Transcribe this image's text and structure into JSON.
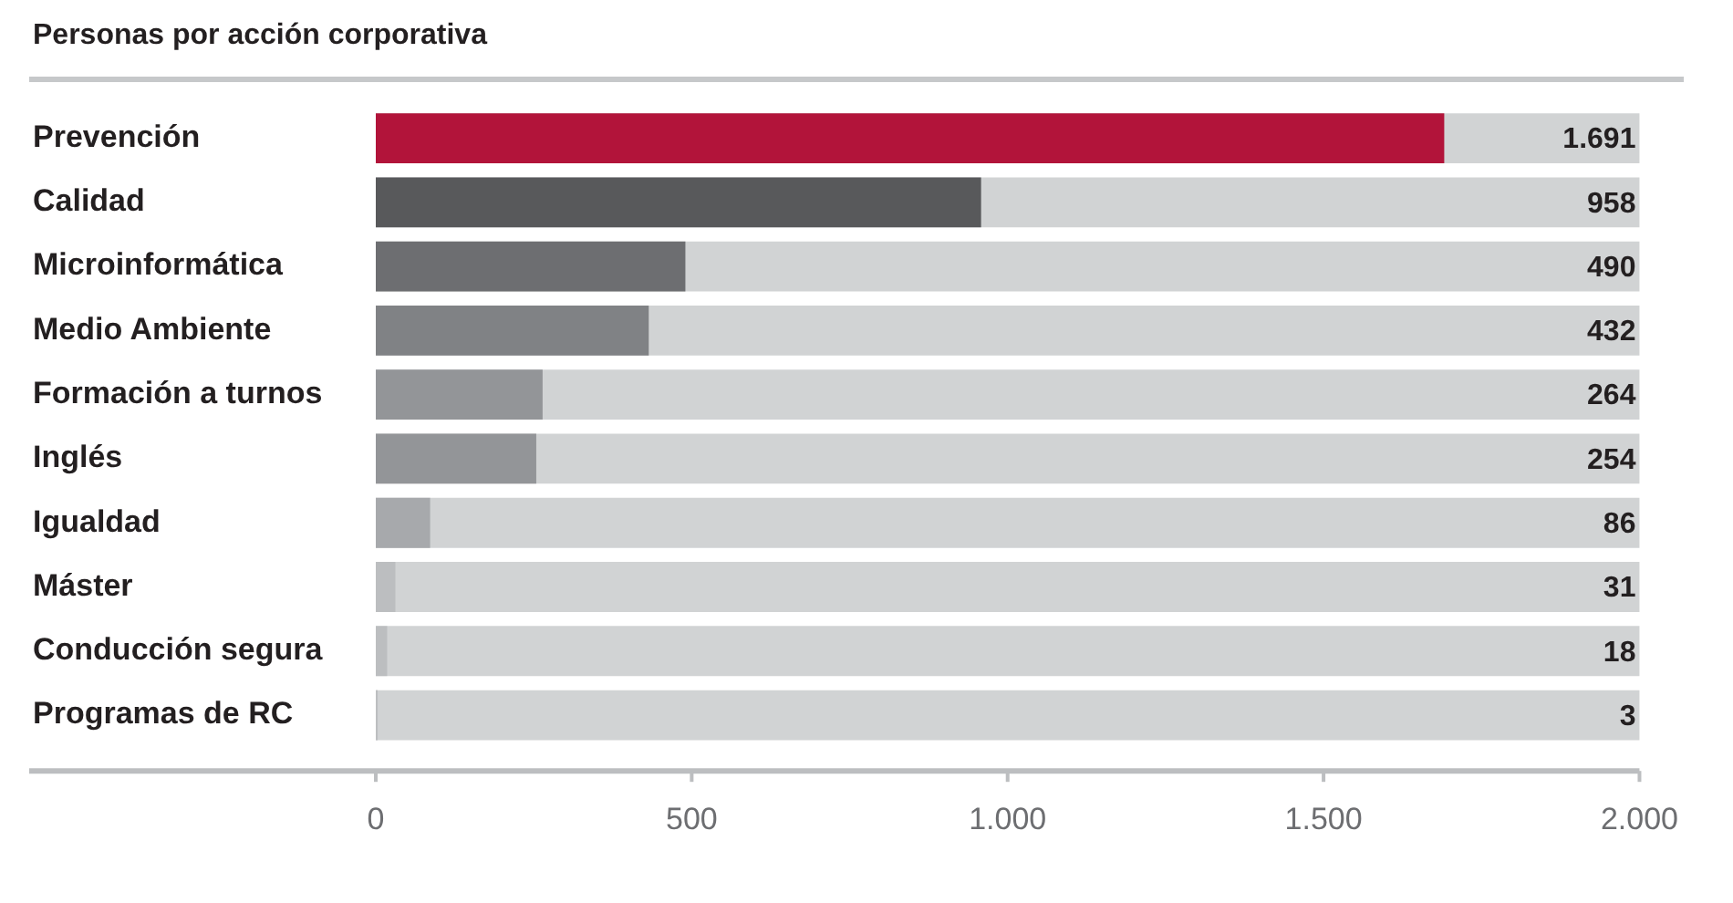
{
  "chart_data": {
    "type": "bar",
    "orientation": "horizontal",
    "title": "Personas por acción corporativa",
    "categories": [
      "Prevención",
      "Calidad",
      "Microinformática",
      "Medio Ambiente",
      "Formación a turnos",
      "Inglés",
      "Igualdad",
      "Máster",
      "Conducción segura",
      "Programas de RC"
    ],
    "values": [
      1691,
      958,
      490,
      432,
      264,
      254,
      86,
      31,
      18,
      3
    ],
    "colors": [
      "#b2143a",
      "#58595b",
      "#6d6e71",
      "#808285",
      "#939598",
      "#939598",
      "#a7a9ac",
      "#bcbec0",
      "#bcbec0",
      "#bcbec0"
    ],
    "value_labels": [
      "1.691",
      "958",
      "490",
      "432",
      "264",
      "254",
      "86",
      "31",
      "18",
      "3"
    ],
    "xlim": [
      0,
      2000
    ],
    "xticks": [
      0,
      500,
      {
        "value": 1000,
        "label": "1.000"
      },
      {
        "value": 1500,
        "label": "1.500"
      },
      {
        "value": 2000,
        "label": "2.000"
      }
    ]
  }
}
